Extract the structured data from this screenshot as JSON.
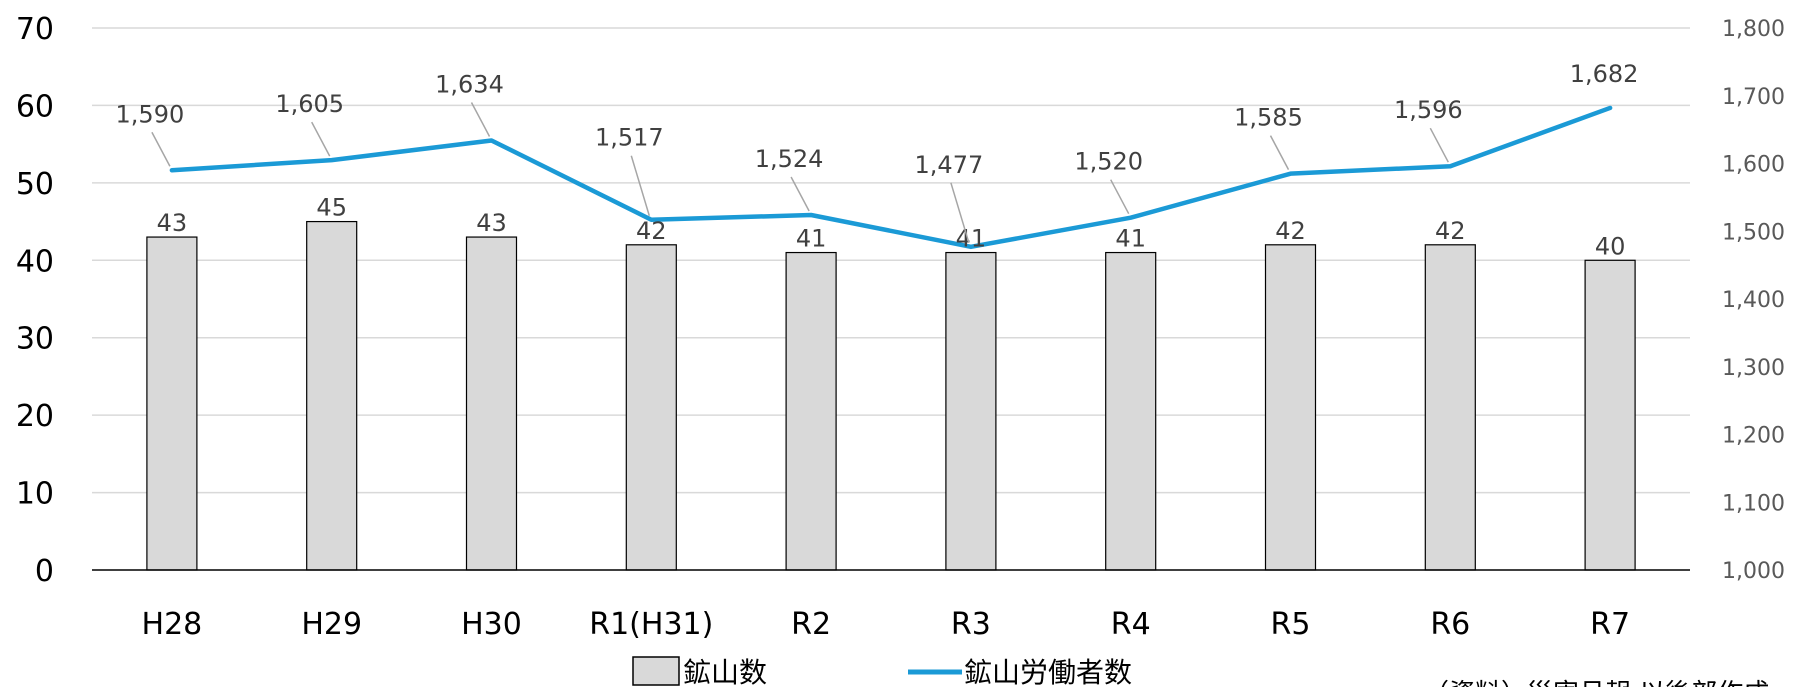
{
  "chart_data": {
    "type": "bar",
    "categories": [
      "H28",
      "H29",
      "H30",
      "R1(H31)",
      "R2",
      "R3",
      "R4",
      "R5",
      "R6",
      "R7"
    ],
    "series": [
      {
        "name": "鉱山数",
        "type": "bar",
        "axis": "left",
        "color": "#d9d9d9",
        "values": [
          43,
          45,
          43,
          42,
          41,
          41,
          41,
          42,
          42,
          40
        ],
        "labels": [
          "43",
          "45",
          "43",
          "42",
          "41",
          "41",
          "41",
          "42",
          "42",
          "40"
        ]
      },
      {
        "name": "鉱山労働者数",
        "type": "line",
        "axis": "right",
        "color": "#1b9ad6",
        "values": [
          1590,
          1605,
          1634,
          1517,
          1524,
          1477,
          1520,
          1585,
          1596,
          1682
        ],
        "labels": [
          "1,590",
          "1,605",
          "1,634",
          "1,517",
          "1,524",
          "1,477",
          "1,520",
          "1,585",
          "1,596",
          "1,682"
        ]
      }
    ],
    "y_left": {
      "range": [
        0,
        70
      ],
      "ticks": [
        0,
        10,
        20,
        30,
        40,
        50,
        60,
        70
      ],
      "tick_labels": [
        "0",
        "10",
        "20",
        "30",
        "40",
        "50",
        "60",
        "70"
      ]
    },
    "y_right": {
      "range": [
        1000,
        1800
      ],
      "ticks": [
        1000,
        1100,
        1200,
        1300,
        1400,
        1500,
        1600,
        1700,
        1800
      ],
      "tick_labels": [
        "1,000",
        "1,100",
        "1,200",
        "1,300",
        "1,400",
        "1,500",
        "1,600",
        "1,700",
        "1,800"
      ]
    },
    "grid": true,
    "legend_position": "bottom",
    "title": "",
    "xlabel": "",
    "ylabel": "",
    "y2label": ""
  },
  "legend": {
    "bar_label": "鉱山数",
    "line_label": "鉱山労働者数"
  },
  "source_note": "（資料）災害月報 以後部作成"
}
